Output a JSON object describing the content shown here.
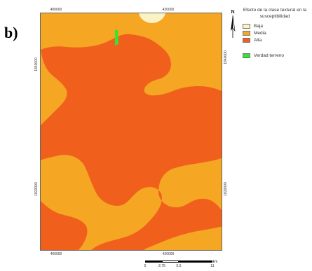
{
  "panel_label": "b)",
  "map": {
    "x_ticks_top": [
      "400000",
      "420000"
    ],
    "x_ticks_bottom": [
      "400000",
      "420000"
    ],
    "y_ticks_left": [
      "1840000",
      "1820000"
    ],
    "y_ticks_right": [
      "1840000",
      "1820000"
    ],
    "north_label": "N"
  },
  "legend": {
    "title": "Efecto de la clase textural en la susceptibilidad",
    "items": [
      {
        "label": "Baja",
        "color": "#fbf3c4"
      },
      {
        "label": "Media",
        "color": "#f5a623"
      },
      {
        "label": "Alta",
        "color": "#f0601c"
      }
    ],
    "ground_truth": {
      "label": "Verdad terreno",
      "color": "#33e633"
    }
  },
  "scale": {
    "labels": [
      "0",
      "2.75",
      "5.5",
      "11"
    ],
    "unit": "km"
  }
}
